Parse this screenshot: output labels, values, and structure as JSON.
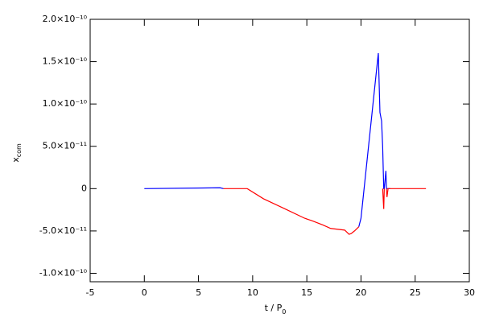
{
  "chart_data": {
    "type": "line",
    "xlabel": "t / P",
    "xlabel_sub": "0",
    "ylabel": "x",
    "ylabel_sub": "com",
    "x": [
      0,
      7.0,
      7.3,
      7.6,
      9.5,
      11,
      13,
      14.8,
      15.5,
      16.5,
      17.2,
      18.5,
      18.9,
      19.1,
      19.4,
      19.8,
      20.0,
      21.6,
      21.75,
      21.9,
      22.0,
      22.1,
      22.15,
      22.3,
      22.35,
      22.4,
      22.5,
      22.7,
      26
    ],
    "series": [
      {
        "color": "#0000ff",
        "values": [
          0,
          1e-12,
          0,
          null,
          null,
          null,
          null,
          null,
          null,
          null,
          null,
          null,
          null,
          null,
          null,
          -4.5e-11,
          -3.5e-11,
          1.6e-10,
          9e-11,
          8e-11,
          5e-11,
          0,
          0,
          2.1e-11,
          0,
          0,
          0,
          0,
          null
        ]
      },
      {
        "color": "#ff0000",
        "values": [
          null,
          null,
          0,
          0,
          0,
          -1.2e-11,
          -2.4e-11,
          -3.5e-11,
          -3.8e-11,
          -4.3e-11,
          -4.7e-11,
          -4.9e-11,
          -5.4e-11,
          -5.3e-11,
          -5e-11,
          -4.5e-11,
          null,
          null,
          null,
          null,
          0,
          -2.4e-11,
          0,
          null,
          0,
          -1e-11,
          0,
          0,
          0
        ]
      }
    ],
    "xlim": [
      -5,
      30
    ],
    "xticks": [
      -5,
      0,
      5,
      10,
      15,
      20,
      25,
      30
    ],
    "ylim": [
      -1.1e-10,
      2e-10
    ],
    "yticks": [
      {
        "value": -1e-10,
        "label": "-1.0×10⁻¹⁰"
      },
      {
        "value": -5e-11,
        "label": "-5.0×10⁻¹¹"
      },
      0,
      {
        "value": 5e-11,
        "label": "5.0×10⁻¹¹"
      },
      {
        "value": 1e-10,
        "label": "1.0×10⁻¹⁰"
      },
      {
        "value": 1.5e-10,
        "label": "1.5×10⁻¹⁰"
      },
      {
        "value": 2e-10,
        "label": "2.0×10⁻¹⁰"
      }
    ]
  }
}
